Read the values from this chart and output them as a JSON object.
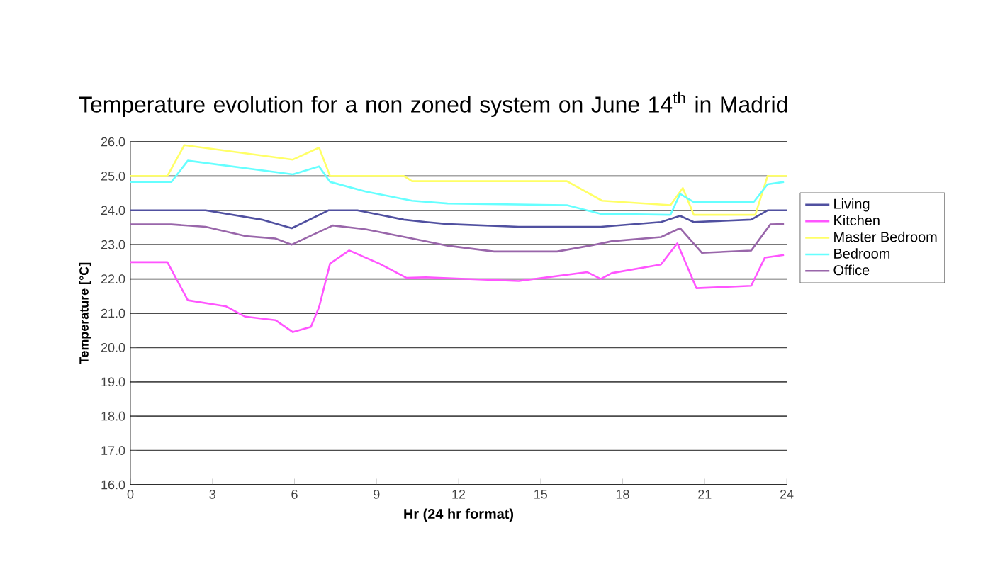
{
  "chart_data": {
    "type": "line",
    "title": "Temperature evolution for a non zoned system on June 14$^{th}$ in Madrid",
    "xlabel": "Hr (24 hr format)",
    "ylabel": "Temperature [°C]",
    "xlim": [
      0,
      24
    ],
    "ylim": [
      16,
      26
    ],
    "xticks": [
      0,
      3,
      6,
      9,
      12,
      15,
      18,
      21,
      24
    ],
    "yticks": [
      {
        "value": 16,
        "label": "16.0"
      },
      {
        "value": 17,
        "label": "17.0"
      },
      {
        "value": 18,
        "label": "18.0"
      },
      {
        "value": 19,
        "label": "19.0"
      },
      {
        "value": 20,
        "label": "20.0"
      },
      {
        "value": 21,
        "label": "21.0"
      },
      {
        "value": 22,
        "label": "22.0"
      },
      {
        "value": 23,
        "label": "23.0"
      },
      {
        "value": 24,
        "label": "24.0"
      },
      {
        "value": 25,
        "label": "25.0"
      },
      {
        "value": 26,
        "label": "26.0"
      }
    ],
    "grid": "y",
    "legend": "right",
    "marker": "none",
    "line_style": "solid",
    "series": [
      {
        "name": "Living",
        "color": "#5050a0",
        "x": [
          0,
          2.75,
          4.8,
          5.9,
          7.24,
          8.3,
          10.0,
          10.8,
          11.6,
          14.2,
          17.2,
          19.4,
          20.1,
          20.6,
          22.7,
          23.3,
          24
        ],
        "values": [
          24.0,
          24.0,
          23.73,
          23.48,
          24.0,
          24.0,
          23.73,
          23.66,
          23.6,
          23.52,
          23.52,
          23.66,
          23.84,
          23.66,
          23.73,
          24.0,
          24.0
        ]
      },
      {
        "name": "Kitchen",
        "color": "#ff55ff",
        "x": [
          0,
          1.35,
          2.1,
          3.5,
          4.2,
          5.3,
          5.94,
          6.6,
          6.9,
          7.3,
          8.0,
          9.1,
          10.1,
          10.8,
          14.2,
          16.7,
          17.2,
          17.6,
          19.4,
          20.0,
          20.7,
          22.7,
          23.2,
          23.9
        ],
        "values": [
          22.49,
          22.49,
          21.38,
          21.2,
          20.9,
          20.8,
          20.45,
          20.6,
          21.18,
          22.45,
          22.83,
          22.45,
          22.03,
          22.05,
          21.94,
          22.2,
          22.0,
          22.17,
          22.42,
          23.04,
          21.73,
          21.8,
          22.62,
          22.7
        ]
      },
      {
        "name": "Master Bedroom",
        "color": "#ffff66",
        "x": [
          0,
          1.35,
          1.97,
          5.94,
          6.9,
          7.3,
          10.0,
          10.3,
          15.96,
          17.25,
          19.75,
          20.2,
          20.6,
          22.85,
          23.3,
          24
        ],
        "values": [
          25.0,
          25.0,
          25.9,
          25.48,
          25.83,
          25.0,
          25.0,
          24.85,
          24.85,
          24.28,
          24.15,
          24.65,
          23.87,
          23.87,
          25.0,
          25.0
        ]
      },
      {
        "name": "Bedroom",
        "color": "#66ffff",
        "x": [
          0,
          1.5,
          2.1,
          5.94,
          6.9,
          7.3,
          8.6,
          10.3,
          11.6,
          15.96,
          17.2,
          19.75,
          20.1,
          20.6,
          22.8,
          23.3,
          23.9
        ],
        "values": [
          24.83,
          24.83,
          25.45,
          25.05,
          25.28,
          24.83,
          24.55,
          24.28,
          24.2,
          24.15,
          23.9,
          23.87,
          24.48,
          24.24,
          24.25,
          24.76,
          24.83
        ]
      },
      {
        "name": "Office",
        "color": "#9966aa",
        "x": [
          0,
          1.5,
          2.75,
          4.2,
          5.3,
          5.9,
          7.4,
          8.6,
          10.3,
          11.6,
          13.3,
          15.6,
          16.8,
          17.6,
          19.4,
          20.1,
          20.9,
          22.7,
          23.4,
          23.9
        ],
        "values": [
          23.59,
          23.59,
          23.52,
          23.25,
          23.18,
          23.0,
          23.56,
          23.45,
          23.18,
          22.97,
          22.8,
          22.8,
          22.97,
          23.1,
          23.22,
          23.48,
          22.76,
          22.83,
          23.59,
          23.6
        ]
      }
    ]
  }
}
